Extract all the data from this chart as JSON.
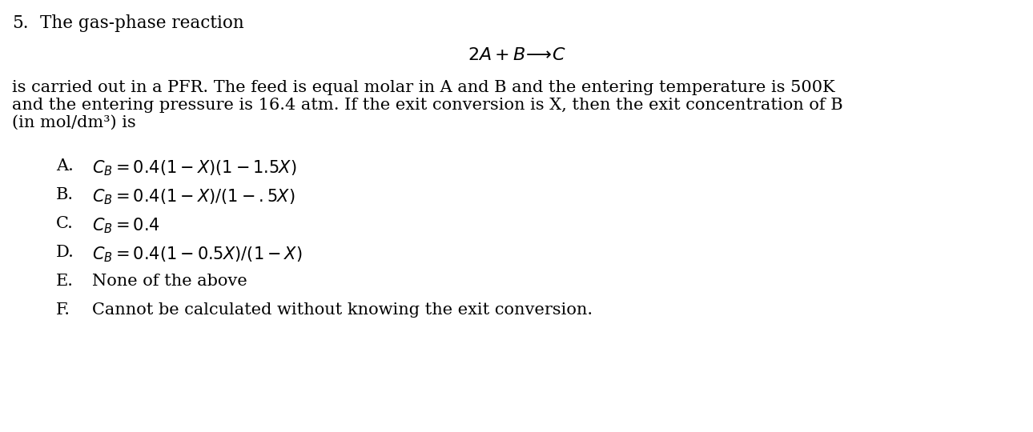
{
  "background_color": "#ffffff",
  "title_number": "5.",
  "title_text": "   The gas-phase reaction",
  "reaction_text": "2A + B——→C",
  "para_line1": "is carried out in a PFR. The feed is equal molar in A and B and the entering temperature is 500K",
  "para_line2": "and the entering pressure is 16.4 atm. If the exit conversion is X, then the exit concentration of B",
  "para_line3": "(in mol/dm³) is",
  "choices": [
    {
      "label": "A.",
      "text": "$C_B = 0.4(1-X)(1-1.5X)$"
    },
    {
      "label": "B.",
      "text": "$C_B = 0.4(1-X)/(1-.5X)$"
    },
    {
      "label": "C.",
      "text": "$C_B = 0.4$"
    },
    {
      "label": "D.",
      "text": "$C_B = 0.4(1-0.5X)/(1-X)$"
    },
    {
      "label": "E.",
      "text": "None of the above"
    },
    {
      "label": "F.",
      "text": "Cannot be calculated without knowing the exit conversion."
    }
  ],
  "fs_header": 15.5,
  "fs_body": 15.0,
  "fs_reaction": 16.0,
  "fs_choices": 15.0
}
